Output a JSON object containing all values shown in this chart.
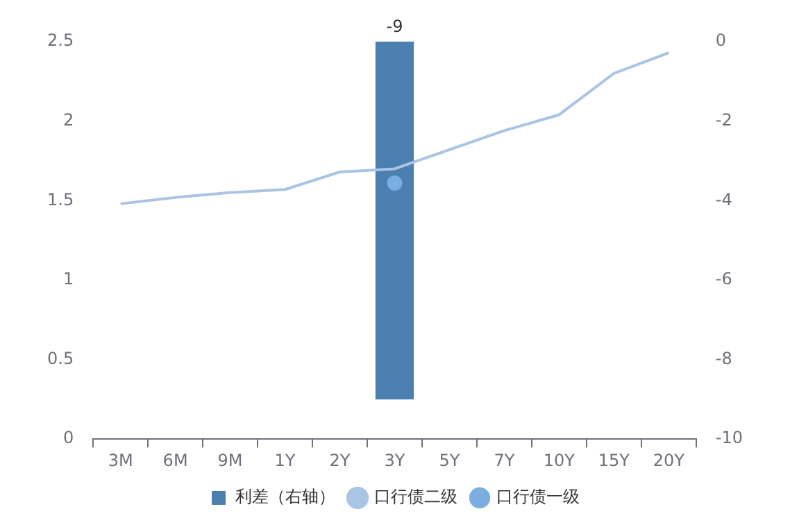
{
  "chart_data": {
    "type": "line",
    "categories": [
      "3M",
      "6M",
      "9M",
      "1Y",
      "2Y",
      "3Y",
      "5Y",
      "7Y",
      "10Y",
      "15Y",
      "20Y"
    ],
    "series": [
      {
        "name": "利差（右轴）",
        "type": "bar",
        "axis": "y2",
        "color": "#4a7fb0",
        "values": [
          null,
          null,
          null,
          null,
          null,
          -9,
          null,
          null,
          null,
          null,
          null
        ],
        "data_labels": true
      },
      {
        "name": "口行债二级",
        "color": "#a9c4e4",
        "marker": "none",
        "values": [
          1.48,
          1.52,
          1.55,
          1.57,
          1.68,
          1.7,
          1.82,
          1.94,
          2.04,
          2.3,
          2.43
        ]
      },
      {
        "name": "口行债一级",
        "type": "scatter",
        "color": "#7aaee0",
        "marker": "circle",
        "values": [
          null,
          null,
          null,
          null,
          null,
          1.61,
          null,
          null,
          null,
          null,
          null
        ]
      }
    ],
    "ylim": [
      0,
      2.5
    ],
    "yticks": [
      0,
      0.5,
      1,
      1.5,
      2,
      2.5
    ],
    "y2lim": [
      -10,
      0
    ],
    "y2ticks": [
      -10,
      -8,
      -6,
      -4,
      -2,
      0
    ],
    "grid": false,
    "legend": "bottom"
  }
}
